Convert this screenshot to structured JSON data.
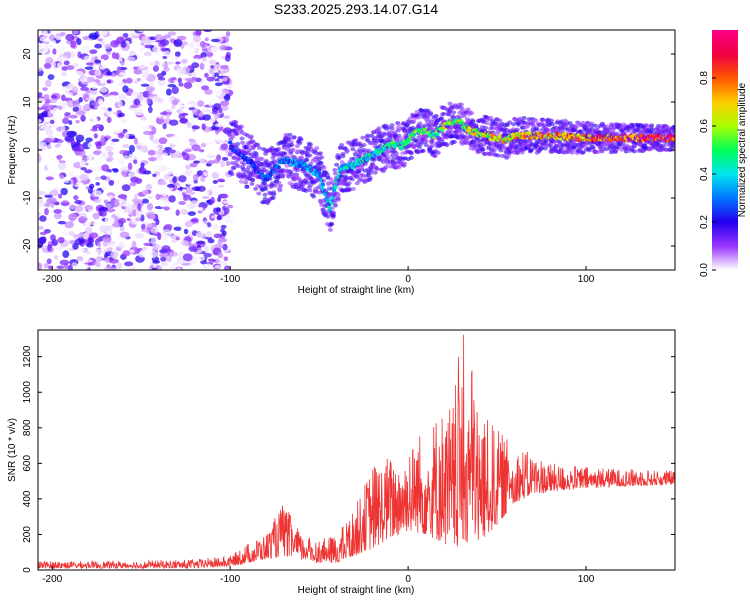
{
  "title": "S233.2025.293.14.07.G14",
  "chart_data": [
    {
      "type": "heatmap",
      "title": "S233.2025.293.14.07.G14",
      "xlabel": "Height of straight line (km)",
      "ylabel": "Frequency (Hz)",
      "xlim": [
        -208,
        150
      ],
      "ylim": [
        -25,
        25
      ],
      "xticks": [
        -200,
        -100,
        0,
        100
      ],
      "yticks": [
        -20,
        -10,
        0,
        10,
        20
      ],
      "colorbar": {
        "label": "Normalized spectral amplitude",
        "range": [
          0,
          1
        ],
        "ticks": [
          0.0,
          0.2,
          0.4,
          0.6,
          0.8
        ],
        "tick_labels": [
          "0.0",
          "0.2",
          "0.4",
          "0.6",
          "0.8"
        ],
        "colors": [
          "#ffffff",
          "#9933ff",
          "#2200ee",
          "#0077ff",
          "#00e5ee",
          "#00ff55",
          "#aaff00",
          "#ffcc00",
          "#ff5500",
          "#ee0044",
          "#ff0088"
        ]
      },
      "ridge": {
        "description_points": [
          [
            -100,
            1
          ],
          [
            -90,
            -2
          ],
          [
            -80,
            -6
          ],
          [
            -70,
            -2
          ],
          [
            -60,
            -3
          ],
          [
            -50,
            -5
          ],
          [
            -44,
            -12
          ],
          [
            -38,
            -4
          ],
          [
            -30,
            -3
          ],
          [
            -20,
            -1
          ],
          [
            -10,
            1
          ],
          [
            -3,
            1
          ],
          [
            5,
            4
          ],
          [
            10,
            4
          ],
          [
            15,
            3
          ],
          [
            20,
            5
          ],
          [
            28,
            6
          ],
          [
            35,
            4
          ],
          [
            45,
            3
          ],
          [
            55,
            2
          ],
          [
            60,
            3
          ],
          [
            80,
            3
          ],
          [
            100,
            2.5
          ],
          [
            120,
            2.5
          ],
          [
            140,
            2.5
          ],
          [
            150,
            2.5
          ]
        ]
      },
      "noise_region": [
        -208,
        -100
      ]
    },
    {
      "type": "line",
      "xlabel": "Height of straight line (km)",
      "ylabel": "SNR (10 * v/v)",
      "xlim": [
        -208,
        150
      ],
      "ylim": [
        0,
        1350
      ],
      "xticks": [
        -200,
        -100,
        0,
        100
      ],
      "yticks": [
        0,
        200,
        400,
        600,
        800,
        1000,
        1200
      ],
      "series": [
        {
          "name": "SNR",
          "color": "#ee3333",
          "envelope": {
            "x": [
              -208,
              -160,
              -120,
              -100,
              -90,
              -80,
              -70,
              -60,
              -50,
              -40,
              -30,
              -20,
              -10,
              0,
              10,
              20,
              25,
              30,
              35,
              40,
              50,
              60,
              70,
              80,
              100,
              120,
              150
            ],
            "low": [
              10,
              10,
              10,
              20,
              40,
              60,
              80,
              60,
              40,
              40,
              80,
              120,
              180,
              220,
              200,
              150,
              120,
              120,
              120,
              150,
              250,
              380,
              420,
              440,
              460,
              470,
              480
            ],
            "high": [
              50,
              50,
              60,
              80,
              150,
              200,
              380,
              200,
              170,
              200,
              350,
              600,
              650,
              700,
              840,
              900,
              950,
              1340,
              1270,
              900,
              800,
              700,
              650,
              600,
              580,
              570,
              560
            ]
          }
        }
      ]
    }
  ]
}
